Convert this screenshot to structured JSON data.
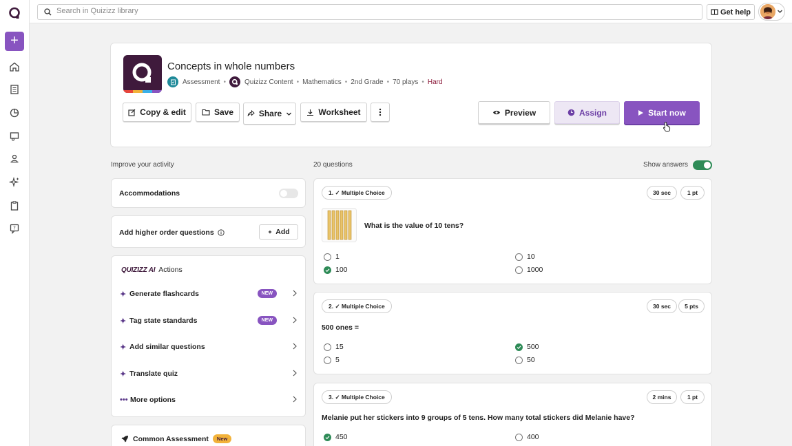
{
  "search": {
    "placeholder": "Search in Quizizz library"
  },
  "topbar": {
    "get_help_label": "Get help"
  },
  "quiz": {
    "title": "Concepts in whole numbers",
    "type": "Assessment",
    "author": "Quizizz Content",
    "subject": "Mathematics",
    "grade": "2nd Grade",
    "plays": "70 plays",
    "difficulty": "Hard"
  },
  "actions": {
    "copy_edit": "Copy & edit",
    "save": "Save",
    "share": "Share",
    "worksheet": "Worksheet",
    "preview": "Preview",
    "assign": "Assign",
    "start_now": "Start now"
  },
  "left": {
    "section_label": "Improve your activity",
    "accommodations": "Accommodations",
    "higher_order": "Add higher order questions",
    "add_label": "Add",
    "ai_brand": "QUIZIZZ AI",
    "ai_title": "Actions",
    "ai_actions": [
      {
        "label": "Generate flashcards",
        "badge": "NEW"
      },
      {
        "label": "Tag state standards",
        "badge": "NEW"
      },
      {
        "label": "Add similar questions",
        "badge": ""
      },
      {
        "label": "Translate quiz",
        "badge": ""
      },
      {
        "label": "More options",
        "badge": ""
      }
    ],
    "common_assessment": "Common Assessment",
    "common_badge": "New"
  },
  "questions_header": {
    "count": "20 questions",
    "show_answers": "Show answers",
    "show_answers_on": true
  },
  "questions": [
    {
      "type_label": "1. Multiple Choice",
      "time": "30 sec",
      "points": "1 pt",
      "text": "What is the value of 10 tens?",
      "options": [
        {
          "text": "1",
          "correct": false
        },
        {
          "text": "10",
          "correct": false
        },
        {
          "text": "100",
          "correct": true
        },
        {
          "text": "1000",
          "correct": false
        }
      ]
    },
    {
      "type_label": "2. Multiple Choice",
      "time": "30 sec",
      "points": "5 pts",
      "text": "500 ones =",
      "options": [
        {
          "text": "15",
          "correct": false
        },
        {
          "text": "500",
          "correct": true
        },
        {
          "text": "5",
          "correct": false
        },
        {
          "text": "50",
          "correct": false
        }
      ]
    },
    {
      "type_label": "3. Multiple Choice",
      "time": "2 mins",
      "points": "1 pt",
      "text": "Melanie put her stickers into 9 groups of 5 tens. How many total stickers did Melanie have?",
      "options": [
        {
          "text": "450",
          "correct": true
        },
        {
          "text": "400",
          "correct": false
        }
      ]
    }
  ],
  "colors": {
    "brand_purple": "#8854c0",
    "correct_green": "#2e8b57",
    "hard_red": "#8b1a3a"
  }
}
